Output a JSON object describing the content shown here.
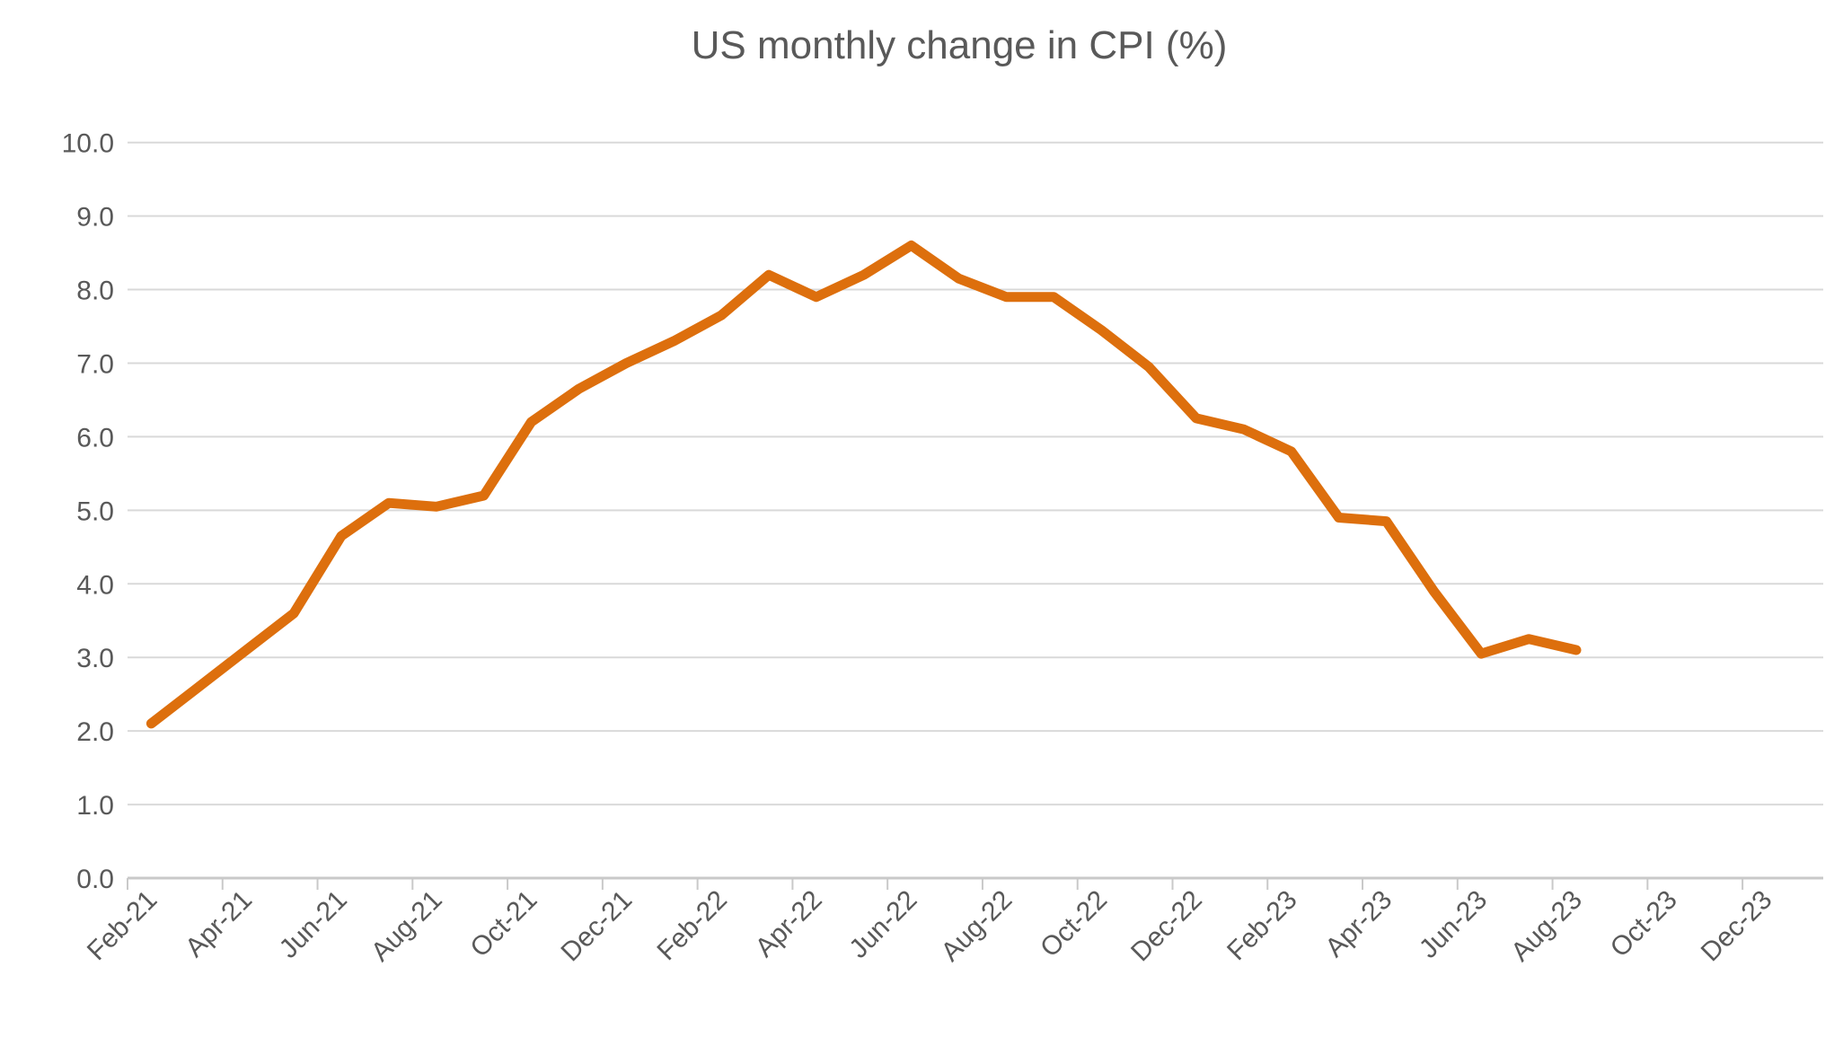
{
  "chart_data": {
    "type": "line",
    "title": "US monthly change in CPI (%)",
    "x": [
      "Feb-21",
      "Mar-21",
      "Apr-21",
      "May-21",
      "Jun-21",
      "Jul-21",
      "Aug-21",
      "Sep-21",
      "Oct-21",
      "Nov-21",
      "Dec-21",
      "Jan-22",
      "Feb-22",
      "Mar-22",
      "Apr-22",
      "May-22",
      "Jun-22",
      "Jul-22",
      "Aug-22",
      "Sep-22",
      "Oct-22",
      "Nov-22",
      "Dec-22",
      "Jan-23",
      "Feb-23",
      "Mar-23",
      "Apr-23",
      "May-23",
      "Jun-23",
      "Jul-23",
      "Aug-23"
    ],
    "values": [
      2.1,
      2.6,
      3.1,
      3.6,
      4.65,
      5.1,
      5.05,
      5.2,
      6.2,
      6.65,
      7.0,
      7.3,
      7.65,
      8.2,
      7.9,
      8.2,
      8.6,
      8.15,
      7.9,
      7.9,
      7.45,
      6.95,
      6.25,
      6.1,
      5.8,
      4.9,
      4.85,
      3.9,
      3.05,
      3.25,
      3.1
    ],
    "x_axis_labels": [
      "Feb-21",
      "Apr-21",
      "Jun-21",
      "Aug-21",
      "Oct-21",
      "Dec-21",
      "Feb-22",
      "Apr-22",
      "Jun-22",
      "Aug-22",
      "Oct-22",
      "Dec-22",
      "Feb-23",
      "Apr-23",
      "Jun-23",
      "Aug-23",
      "Oct-23",
      "Dec-23"
    ],
    "total_categories": 35,
    "y_axis": {
      "min": 0,
      "max": 10,
      "step": 1,
      "tick_format": "0.0"
    },
    "xlabel": "",
    "ylabel": "",
    "grid": true,
    "legend": false,
    "line_color": "#DD6F0D",
    "text_color": "#595959",
    "gridline_color": "#D9D9D9",
    "axis_color": "#C9C9C9"
  }
}
